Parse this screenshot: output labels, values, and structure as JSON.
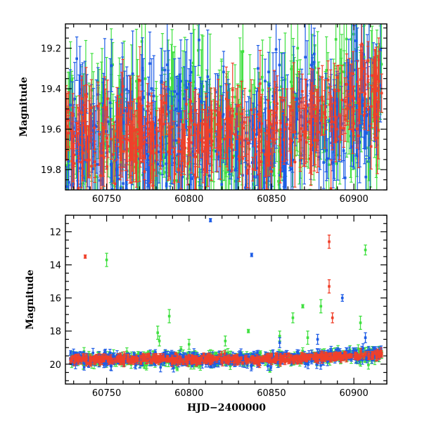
{
  "colors": {
    "red": "#f0402a",
    "blue": "#1d5ce6",
    "green": "#40e040"
  },
  "chart_data": [
    {
      "type": "scatter",
      "panel": "top",
      "ylabel": "Magnitude",
      "xlabel": "",
      "xlim": [
        60725,
        60920
      ],
      "ylim": [
        19.9,
        19.08
      ],
      "y_inverted": true,
      "x_ticks": [
        60750,
        60800,
        60850,
        60900
      ],
      "x_tick_labels": [
        "60750",
        "60800",
        "60850",
        "60900"
      ],
      "y_ticks": [
        19.2,
        19.4,
        19.6,
        19.8
      ],
      "y_tick_labels": [
        "19.2",
        "19.4",
        "19.6",
        "19.8"
      ],
      "series": [
        {
          "color": "green",
          "x_range": [
            60725,
            60917
          ],
          "mean_y": 19.62,
          "scatter": 0.18,
          "error": 0.17,
          "trend": "brightening after 60850"
        },
        {
          "color": "blue",
          "x_range": [
            60725,
            60917
          ],
          "mean_y": 19.62,
          "scatter": 0.16,
          "error": 0.15,
          "trend": "brightening after 60850"
        },
        {
          "color": "red",
          "x_range": [
            60725,
            60917
          ],
          "mean_y": 19.64,
          "scatter": 0.1,
          "error": 0.11,
          "trend": "brightening after 60850 to ~19.3"
        }
      ]
    },
    {
      "type": "scatter",
      "panel": "bottom",
      "ylabel": "Magnitude",
      "xlabel": "HJD−2400000",
      "xlim": [
        60725,
        60920
      ],
      "ylim": [
        21.2,
        11.0
      ],
      "y_inverted": true,
      "x_ticks": [
        60750,
        60800,
        60850,
        60900
      ],
      "x_tick_labels": [
        "60750",
        "60800",
        "60850",
        "60900"
      ],
      "y_ticks": [
        12,
        14,
        16,
        18,
        20
      ],
      "y_tick_labels": [
        "12",
        "14",
        "16",
        "18",
        "20"
      ],
      "outliers": [
        {
          "color": "red",
          "x": 60737,
          "y": 13.5,
          "err": 0.1
        },
        {
          "color": "green",
          "x": 60750,
          "y": 13.7,
          "err": 0.4
        },
        {
          "color": "blue",
          "x": 60813,
          "y": 11.3,
          "err": 0.1
        },
        {
          "color": "blue",
          "x": 60838,
          "y": 13.4,
          "err": 0.1
        },
        {
          "color": "red",
          "x": 60885,
          "y": 12.6,
          "err": 0.4
        },
        {
          "color": "red",
          "x": 60885,
          "y": 15.3,
          "err": 0.4
        },
        {
          "color": "red",
          "x": 60887,
          "y": 17.2,
          "err": 0.3
        },
        {
          "color": "blue",
          "x": 60893,
          "y": 16.0,
          "err": 0.2
        },
        {
          "color": "green",
          "x": 60907,
          "y": 13.1,
          "err": 0.3
        },
        {
          "color": "green",
          "x": 60904,
          "y": 17.5,
          "err": 0.4
        },
        {
          "color": "green",
          "x": 60788,
          "y": 17.1,
          "err": 0.4
        },
        {
          "color": "green",
          "x": 60781,
          "y": 18.1,
          "err": 0.4
        },
        {
          "color": "green",
          "x": 60782,
          "y": 18.6,
          "err": 0.3
        },
        {
          "color": "green",
          "x": 60800,
          "y": 18.8,
          "err": 0.3
        },
        {
          "color": "green",
          "x": 60822,
          "y": 18.6,
          "err": 0.3
        },
        {
          "color": "green",
          "x": 60836,
          "y": 18.0,
          "err": 0.1
        },
        {
          "color": "green",
          "x": 60855,
          "y": 18.3,
          "err": 0.3
        },
        {
          "color": "green",
          "x": 60863,
          "y": 17.2,
          "err": 0.3
        },
        {
          "color": "green",
          "x": 60869,
          "y": 16.5,
          "err": 0.1
        },
        {
          "color": "green",
          "x": 60880,
          "y": 16.5,
          "err": 0.4
        },
        {
          "color": "green",
          "x": 60872,
          "y": 18.4,
          "err": 0.4
        },
        {
          "color": "blue",
          "x": 60878,
          "y": 18.5,
          "err": 0.3
        },
        {
          "color": "blue",
          "x": 60855,
          "y": 18.7,
          "err": 0.3
        },
        {
          "color": "blue",
          "x": 60907,
          "y": 18.4,
          "err": 0.3
        }
      ]
    }
  ]
}
